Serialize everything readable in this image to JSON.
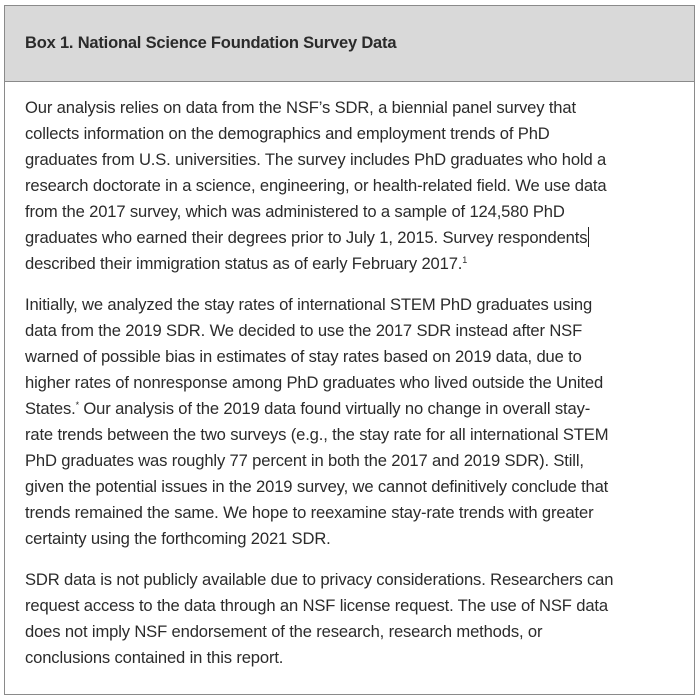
{
  "box": {
    "title": "Box 1. National Science Foundation Survey Data",
    "paragraphs": [
      {
        "lines": [
          "Our analysis relies on data from the NSF’s SDR, a biennial panel survey that",
          "collects information on the demographics and employment trends of PhD",
          "graduates from U.S. universities. The survey includes PhD graduates who hold a",
          "research doctorate in a science, engineering, or health-related field. We use data",
          "from the 2017 survey, which was administered to a sample of 124,580 PhD",
          "graduates who earned their degrees prior to July 1, 2015. Survey respondents",
          "described their immigration status as of early February 2017."
        ],
        "footnote": "1"
      },
      {
        "lines": [
          "Initially, we analyzed the stay rates of international STEM PhD graduates using",
          "data from the 2019 SDR. We decided to use the 2017 SDR instead after NSF",
          "warned of possible bias in estimates of stay rates based on 2019 data, due to",
          "higher rates of nonresponse among PhD graduates who lived outside the United",
          "States.",
          "rate trends between the two surveys (e.g., the stay rate for all international STEM",
          "PhD graduates was roughly 77 percent in both the 2017 and 2019 SDR). Still,",
          "given the potential issues in the 2019 survey, we cannot definitively conclude that",
          "trends remained the same. We hope to reexamine stay-rate trends with greater",
          "certainty using the forthcoming 2021 SDR."
        ],
        "footnote": "*",
        "line5_rest": " Our analysis of the 2019 data found virtually no change in overall stay-"
      },
      {
        "lines": [
          "SDR data is not publicly available due to privacy considerations. Researchers can",
          "request access to the data through an NSF license request. The use of NSF data",
          "does not imply NSF endorsement of the research, research methods, or",
          "conclusions contained in this report."
        ]
      }
    ]
  }
}
